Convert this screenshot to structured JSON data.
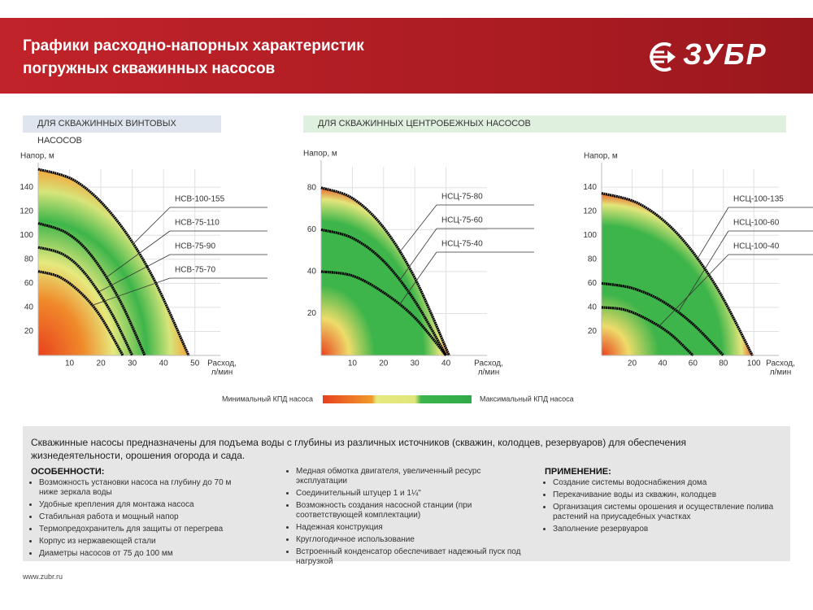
{
  "header": {
    "title_lines": [
      "Графики расходно-напорных характеристик",
      "погружных скважинных насосов"
    ],
    "logo": "ЗУБР"
  },
  "sections": [
    "ДЛЯ СКВАЖИННЫХ ВИНТОВЫХ НАСОСОВ",
    "ДЛЯ СКВАЖИННЫХ ЦЕНТРОБЕЖНЫХ НАСОСОВ"
  ],
  "chart_data": [
    {
      "type": "line",
      "y_label": "Напор, м",
      "x_label_lines": [
        "Расход,",
        "л/мин"
      ],
      "xlim": [
        0,
        55
      ],
      "ylim": [
        0,
        155
      ],
      "xticks": [
        10,
        20,
        30,
        40,
        50
      ],
      "yticks": [
        20,
        40,
        60,
        80,
        100,
        120,
        140
      ],
      "grid": true,
      "series": [
        {
          "name": "НСВ-100-155",
          "color": "#000000",
          "x": [
            0,
            12,
            24,
            36,
            48
          ],
          "values": [
            155,
            145,
            116,
            68,
            0
          ]
        },
        {
          "name": "НСВ-75-110",
          "color": "#000000",
          "x": [
            0,
            9,
            17,
            26,
            34
          ],
          "values": [
            110,
            102,
            83,
            46,
            0
          ]
        },
        {
          "name": "НСВ-75-90",
          "color": "#000000",
          "x": [
            0,
            8,
            15,
            23,
            30
          ],
          "values": [
            90,
            84,
            68,
            37,
            0
          ]
        },
        {
          "name": "НСВ-75-70",
          "color": "#000000",
          "x": [
            0,
            7,
            14,
            20,
            27
          ],
          "values": [
            70,
            65,
            51,
            32,
            0
          ]
        }
      ]
    },
    {
      "type": "line",
      "y_label": "Напор, м",
      "x_label_lines": [
        "Расход,",
        "л/мин"
      ],
      "xlim": [
        0,
        50
      ],
      "ylim": [
        0,
        90
      ],
      "xticks": [
        10,
        20,
        30,
        40
      ],
      "yticks": [
        20,
        40,
        60,
        80
      ],
      "grid": true,
      "series": [
        {
          "name": "НСЦ-75-80",
          "color": "#000000",
          "x": [
            0,
            10,
            20,
            30,
            41
          ],
          "values": [
            80,
            75,
            61,
            37,
            0
          ]
        },
        {
          "name": "НСЦ-75-60",
          "color": "#000000",
          "x": [
            0,
            10,
            20,
            30,
            40
          ],
          "values": [
            60,
            56,
            45,
            26,
            0
          ]
        },
        {
          "name": "НСЦ-75-40",
          "color": "#000000",
          "x": [
            0,
            10,
            20,
            30,
            40
          ],
          "values": [
            40,
            38,
            30,
            18,
            0
          ]
        }
      ]
    },
    {
      "type": "line",
      "y_label": "Напор, м",
      "x_label_lines": [
        "Расход,",
        "л/мин"
      ],
      "xlim": [
        0,
        110
      ],
      "ylim": [
        0,
        155
      ],
      "xticks": [
        20,
        40,
        60,
        80,
        100
      ],
      "yticks": [
        20,
        40,
        60,
        80,
        100,
        120,
        140
      ],
      "grid": true,
      "series": [
        {
          "name": "НСЦ-100-135",
          "color": "#000000",
          "x": [
            0,
            25,
            50,
            75,
            99
          ],
          "values": [
            135,
            126,
            101,
            58,
            0
          ]
        },
        {
          "name": "НСЦ-100-60",
          "color": "#000000",
          "x": [
            0,
            20,
            40,
            60,
            80
          ],
          "values": [
            60,
            56,
            45,
            26,
            0
          ]
        },
        {
          "name": "НСЦ-100-40",
          "color": "#000000",
          "x": [
            0,
            15,
            30,
            45,
            60
          ],
          "values": [
            40,
            38,
            30,
            18,
            0
          ]
        }
      ]
    }
  ],
  "legend": {
    "min": "Минимальный КПД насоса",
    "max": "Максимальный КПД насоса"
  },
  "info": {
    "intro": "Скважинные насосы предназначены для подъема воды с глубины из различных источников (скважин, колодцев, резервуаров) для обеспечения жизнедеятельности, орошения огорода и сада.",
    "features": {
      "title": "ОСОБЕННОСТИ:",
      "items": [
        "Возможность установки насоса на глубину до 70 м ниже зеркала воды",
        "Удобные крепления для монтажа насоса",
        "Стабильная работа и мощный напор",
        "Термопредохранитель для защиты от перегрева",
        "Корпус из нержавеющей стали",
        "Диаметры насосов от 75 до 100 мм"
      ]
    },
    "extras": [
      "Медная обмотка двигателя, увеличенный ресурс эксплуатации",
      "Соединительный штуцер 1 и 1¼\"",
      "Возможность создания насосной станции (при соответствующей комплектации)",
      "Надежная конструкция",
      "Круглогодичное использование",
      "Встроенный конденсатор обеспечивает надежный пуск под нагрузкой"
    ],
    "application": {
      "title": "ПРИМЕНЕНИЕ:",
      "items": [
        "Создание системы водоснабжения дома",
        "Перекачивание воды из скважин, колодцев",
        "Организация системы орошения и осуществление полива растений на приусадебных участках",
        "Заполнение резервуаров"
      ]
    }
  },
  "footer": "www.zubr.ru"
}
